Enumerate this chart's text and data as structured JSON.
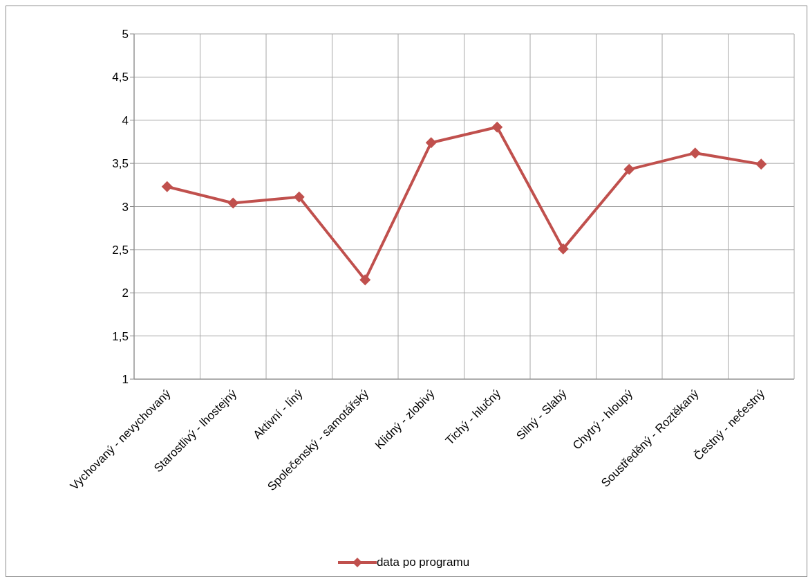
{
  "chart_data": {
    "type": "line",
    "categories": [
      "Vychovaný - nevychovaný",
      "Starostlivý - lhostejný",
      "Aktivní - líný",
      "Společenský - samotářský",
      "Klidný - zlobivý",
      "Tichý - hlučný",
      "Silný - Slabý",
      "Chytrý - hloupý",
      "Soustředěný - Roztěkaný",
      "Čestný - nečestný"
    ],
    "series": [
      {
        "name": "data po programu",
        "color": "#c0504d",
        "values": [
          3.23,
          3.04,
          3.11,
          2.15,
          3.74,
          3.92,
          2.51,
          3.43,
          3.62,
          3.49
        ]
      }
    ],
    "ylim": [
      1,
      5
    ],
    "yticks": [
      1,
      {
        "value": 1.5,
        "label": "1,5"
      },
      2,
      {
        "value": 2.5,
        "label": "2,5"
      },
      3,
      {
        "value": 3.5,
        "label": "3,5"
      },
      4,
      {
        "value": 4.5,
        "label": "4,5"
      },
      5
    ],
    "grid": true,
    "legend": "bottom",
    "marker": "diamond",
    "line_style": "solid"
  }
}
